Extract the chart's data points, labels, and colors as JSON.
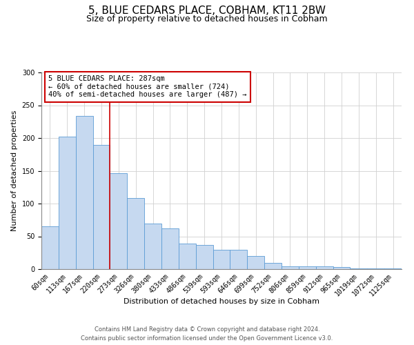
{
  "title": "5, BLUE CEDARS PLACE, COBHAM, KT11 2BW",
  "subtitle": "Size of property relative to detached houses in Cobham",
  "xlabel": "Distribution of detached houses by size in Cobham",
  "ylabel": "Number of detached properties",
  "bar_labels": [
    "60sqm",
    "113sqm",
    "167sqm",
    "220sqm",
    "273sqm",
    "326sqm",
    "380sqm",
    "433sqm",
    "486sqm",
    "539sqm",
    "593sqm",
    "646sqm",
    "699sqm",
    "752sqm",
    "806sqm",
    "859sqm",
    "912sqm",
    "965sqm",
    "1019sqm",
    "1072sqm",
    "1125sqm"
  ],
  "bar_values": [
    65,
    202,
    234,
    190,
    146,
    108,
    70,
    62,
    39,
    37,
    30,
    30,
    20,
    10,
    4,
    4,
    4,
    3,
    1,
    1,
    1
  ],
  "bar_color": "#c6d9f0",
  "bar_edge_color": "#5b9bd5",
  "annotation_box_text": "5 BLUE CEDARS PLACE: 287sqm\n← 60% of detached houses are smaller (724)\n40% of semi-detached houses are larger (487) →",
  "annotation_box_color": "#ffffff",
  "annotation_box_edge_color": "#cc0000",
  "vline_color": "#cc0000",
  "vline_x_index": 3.5,
  "ylim": [
    0,
    300
  ],
  "yticks": [
    0,
    50,
    100,
    150,
    200,
    250,
    300
  ],
  "footer_line1": "Contains HM Land Registry data © Crown copyright and database right 2024.",
  "footer_line2": "Contains public sector information licensed under the Open Government Licence v3.0.",
  "title_fontsize": 11,
  "subtitle_fontsize": 9,
  "axis_label_fontsize": 8,
  "tick_fontsize": 7,
  "annotation_fontsize": 7.5,
  "footer_fontsize": 6,
  "bg_color": "#ffffff"
}
